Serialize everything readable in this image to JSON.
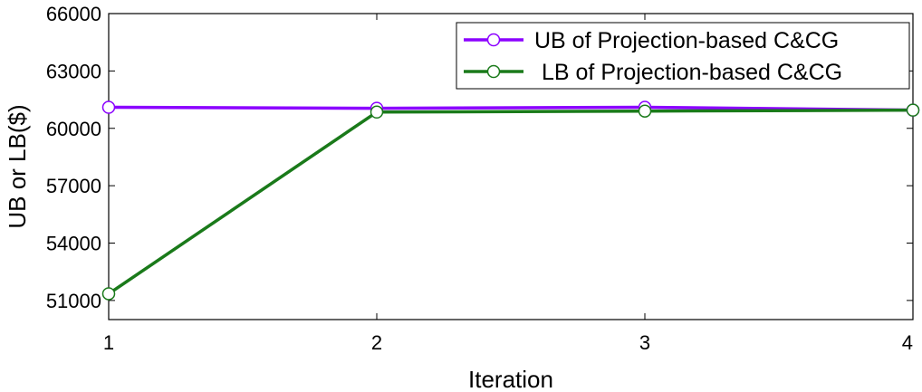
{
  "chart_data": {
    "type": "line",
    "xlabel": "Iteration",
    "ylabel": "UB or LB($)",
    "x": [
      1,
      2,
      3,
      4
    ],
    "xlim": [
      1,
      4
    ],
    "ylim": [
      50000,
      66000
    ],
    "xticks": [
      "1",
      "2",
      "3",
      "4"
    ],
    "yticks": [
      51000,
      54000,
      57000,
      60000,
      63000,
      66000
    ],
    "ytick_labels": [
      "51000",
      "54000",
      "57000",
      "60000",
      "63000",
      "66000"
    ],
    "grid": false,
    "legend_position": "top-right",
    "series": [
      {
        "name": "UB of Projection-based C&CG",
        "values": [
          61100,
          61050,
          61100,
          60950
        ],
        "color": "#8b00ff",
        "marker": "open-circle"
      },
      {
        "name": "LB of Projection-based C&CG",
        "values": [
          51350,
          60850,
          60900,
          60950
        ],
        "color": "#1a7a1a",
        "marker": "open-circle"
      }
    ]
  }
}
